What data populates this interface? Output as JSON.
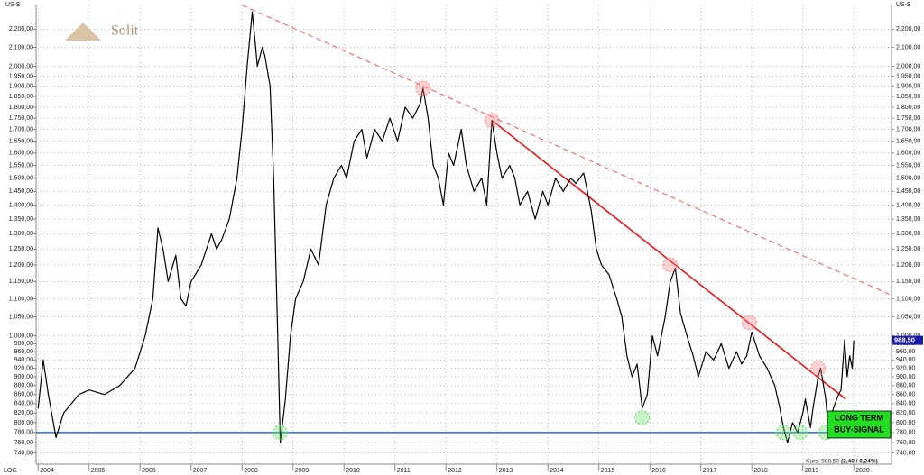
{
  "chart_data": {
    "type": "line",
    "y_unit": "US-$",
    "scale_label": "LOG",
    "logo": "Solit",
    "yscale": "log",
    "grid": true,
    "xlim": [
      2003.96,
      2020.74
    ],
    "xticks": [
      2004,
      2005,
      2006,
      2007,
      2008,
      2009,
      2010,
      2011,
      2012,
      2013,
      2014,
      2015,
      2016,
      2017,
      2018,
      2019,
      2020
    ],
    "ylim": [
      719,
      2344
    ],
    "yticks": [
      {
        "value": 740,
        "label": "740,00"
      },
      {
        "value": 760,
        "label": "760,00"
      },
      {
        "value": 780,
        "label": "780,00"
      },
      {
        "value": 800,
        "label": "800,00"
      },
      {
        "value": 820,
        "label": "820,00"
      },
      {
        "value": 840,
        "label": "840,00"
      },
      {
        "value": 860,
        "label": "860,00"
      },
      {
        "value": 880,
        "label": "880,00"
      },
      {
        "value": 900,
        "label": "900,00"
      },
      {
        "value": 920,
        "label": "920,00"
      },
      {
        "value": 940,
        "label": "940,00"
      },
      {
        "value": 960,
        "label": "960,00"
      },
      {
        "value": 980,
        "label": "980,00"
      },
      {
        "value": 1000,
        "label": "1.000,00"
      },
      {
        "value": 1050,
        "label": "1.050,00"
      },
      {
        "value": 1100,
        "label": "1.100,00"
      },
      {
        "value": 1150,
        "label": "1.150,00"
      },
      {
        "value": 1200,
        "label": "1.200,00"
      },
      {
        "value": 1250,
        "label": "1.250,00"
      },
      {
        "value": 1300,
        "label": "1.300,00"
      },
      {
        "value": 1350,
        "label": "1.350,00"
      },
      {
        "value": 1400,
        "label": "1.400,00"
      },
      {
        "value": 1450,
        "label": "1.450,00"
      },
      {
        "value": 1500,
        "label": "1.500,00"
      },
      {
        "value": 1550,
        "label": "1.550,00"
      },
      {
        "value": 1600,
        "label": "1.600,00"
      },
      {
        "value": 1650,
        "label": "1.650,00"
      },
      {
        "value": 1700,
        "label": "1.700,00"
      },
      {
        "value": 1750,
        "label": "1.750,00"
      },
      {
        "value": 1800,
        "label": "1.800,00"
      },
      {
        "value": 1850,
        "label": "1.850,00"
      },
      {
        "value": 1900,
        "label": "1.900,00"
      },
      {
        "value": 1950,
        "label": "1.950,00"
      },
      {
        "value": 2000,
        "label": "2.000,00"
      },
      {
        "value": 2100,
        "label": "2.100,00"
      },
      {
        "value": 2200,
        "label": "2.200,00"
      }
    ],
    "x": [
      2004.0,
      2004.1,
      2004.2,
      2004.35,
      2004.5,
      2004.8,
      2005.0,
      2005.3,
      2005.6,
      2005.9,
      2006.1,
      2006.25,
      2006.35,
      2006.45,
      2006.55,
      2006.7,
      2006.8,
      2006.9,
      2007.0,
      2007.2,
      2007.4,
      2007.5,
      2007.6,
      2007.75,
      2007.9,
      2008.0,
      2008.1,
      2008.2,
      2008.25,
      2008.3,
      2008.4,
      2008.45,
      2008.55,
      2008.62,
      2008.7,
      2008.75,
      2008.85,
      2008.95,
      2009.05,
      2009.2,
      2009.35,
      2009.5,
      2009.65,
      2009.8,
      2009.95,
      2010.05,
      2010.2,
      2010.35,
      2010.45,
      2010.6,
      2010.75,
      2010.9,
      2011.05,
      2011.2,
      2011.35,
      2011.5,
      2011.55,
      2011.65,
      2011.75,
      2011.85,
      2011.95,
      2012.05,
      2012.15,
      2012.3,
      2012.4,
      2012.55,
      2012.7,
      2012.8,
      2012.9,
      2013.0,
      2013.1,
      2013.25,
      2013.35,
      2013.45,
      2013.6,
      2013.75,
      2013.9,
      2014.0,
      2014.15,
      2014.3,
      2014.45,
      2014.55,
      2014.7,
      2014.85,
      2014.95,
      2015.05,
      2015.2,
      2015.35,
      2015.45,
      2015.55,
      2015.65,
      2015.75,
      2015.85,
      2015.95,
      2016.05,
      2016.15,
      2016.3,
      2016.4,
      2016.5,
      2016.6,
      2016.75,
      2016.85,
      2016.95,
      2017.1,
      2017.25,
      2017.4,
      2017.55,
      2017.7,
      2017.8,
      2017.9,
      2018.0,
      2018.15,
      2018.3,
      2018.45,
      2018.55,
      2018.62,
      2018.7,
      2018.8,
      2018.9,
      2019.0,
      2019.05,
      2019.15,
      2019.2,
      2019.3,
      2019.35,
      2019.45,
      2019.5,
      2019.6,
      2019.7,
      2019.75,
      2019.82,
      2019.87,
      2019.92,
      2019.97,
      2020.0
    ],
    "series": [
      {
        "name": "Kurs",
        "color": "#000000",
        "values": [
          830,
          940,
          860,
          770,
          820,
          860,
          870,
          860,
          880,
          920,
          1000,
          1100,
          1320,
          1250,
          1150,
          1230,
          1100,
          1080,
          1150,
          1200,
          1300,
          1250,
          1280,
          1350,
          1500,
          1700,
          2000,
          2300,
          2150,
          2000,
          2100,
          2050,
          1900,
          1500,
          1000,
          760,
          850,
          1000,
          1100,
          1150,
          1250,
          1200,
          1400,
          1500,
          1550,
          1500,
          1650,
          1700,
          1580,
          1700,
          1650,
          1750,
          1650,
          1800,
          1750,
          1820,
          1890,
          1750,
          1550,
          1500,
          1400,
          1600,
          1550,
          1700,
          1550,
          1450,
          1500,
          1400,
          1740,
          1600,
          1500,
          1550,
          1500,
          1400,
          1450,
          1350,
          1450,
          1400,
          1500,
          1450,
          1500,
          1480,
          1520,
          1380,
          1250,
          1200,
          1170,
          1100,
          1050,
          950,
          900,
          930,
          830,
          860,
          1000,
          950,
          1050,
          1150,
          1190,
          1060,
          990,
          950,
          900,
          960,
          940,
          980,
          920,
          960,
          930,
          950,
          1010,
          950,
          920,
          880,
          830,
          790,
          760,
          800,
          780,
          820,
          850,
          790,
          830,
          900,
          920,
          850,
          790,
          830,
          860,
          870,
          990,
          900,
          950,
          920,
          988.5
        ]
      }
    ],
    "last_label": "988,50",
    "lines": [
      {
        "color": "#ff0000",
        "style": "solid",
        "x": [
          2012.9,
          2019.84
        ],
        "y": [
          1740,
          850
        ]
      },
      {
        "color": "#ff5555",
        "style": "dashed",
        "x": [
          2008.0,
          2020.74
        ],
        "y": [
          2340,
          1110
        ]
      },
      {
        "color": "#1e6fd9",
        "style": "solid",
        "x": [
          2003.96,
          2020.0
        ],
        "y": [
          780,
          780
        ]
      }
    ],
    "highlights": [
      {
        "color": "#ff8080",
        "x": [
          2011.55,
          2012.9,
          2016.4,
          2017.95,
          2019.3
        ],
        "y": [
          1890,
          1740,
          1200,
          1035,
          920
        ]
      },
      {
        "color": "#66dd66",
        "x": [
          2008.75,
          2015.85,
          2018.62,
          2018.95,
          2019.45
        ],
        "y": [
          780,
          810,
          780,
          780,
          780
        ]
      }
    ],
    "annotation": [
      "LONG TERM",
      "BUY-SIGNAL"
    ],
    "footer": "Kurs: 988,50",
    "footer_change": "(2,40 / 0,24%)"
  }
}
